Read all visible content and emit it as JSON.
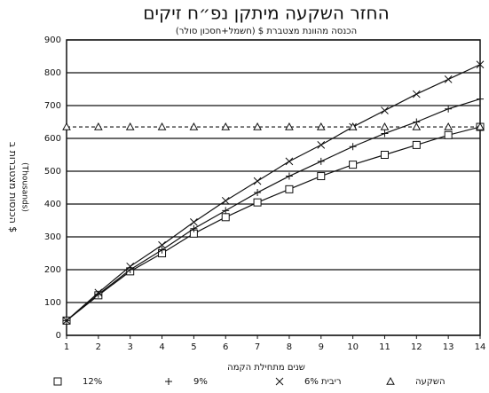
{
  "chart_data": {
    "type": "line",
    "title": "החזר השקעה מיתקן נפ״ח זיקים",
    "subtitle": "הכנסה מהוונת מצטברת $ (חשמל+חסכון סולר)",
    "ylabel": "הכנסות מצטברות ב $",
    "ylabel_unit": "(Thousands)",
    "xlabel": "שנים מתחילת הקמה",
    "x": [
      1,
      2,
      3,
      4,
      5,
      6,
      7,
      8,
      9,
      10,
      11,
      12,
      13,
      14
    ],
    "xlim": [
      1,
      14
    ],
    "xticks": [
      1,
      2,
      3,
      4,
      5,
      6,
      7,
      8,
      9,
      10,
      11,
      12,
      13,
      14
    ],
    "ylim": [
      0,
      900
    ],
    "yticks": [
      0,
      100,
      200,
      300,
      400,
      500,
      600,
      700,
      800,
      900
    ],
    "grid": true,
    "legend": "bottom",
    "series": [
      {
        "name": "12%",
        "color": "#111111",
        "marker": "square",
        "values": [
          45,
          122,
          195,
          250,
          310,
          360,
          405,
          445,
          485,
          520,
          550,
          580,
          610,
          635
        ]
      },
      {
        "name": "9%",
        "color": "#111111",
        "marker": "plus",
        "values": [
          45,
          125,
          200,
          260,
          325,
          380,
          435,
          485,
          530,
          575,
          615,
          650,
          690,
          720
        ]
      },
      {
        "name": "ריבית 6%",
        "color": "#111111",
        "marker": "diamond",
        "values": [
          45,
          130,
          210,
          275,
          345,
          410,
          470,
          530,
          580,
          635,
          685,
          735,
          780,
          825
        ]
      },
      {
        "name": "השקעה",
        "color": "#111111",
        "marker": "triangle",
        "dashed": true,
        "values": [
          635,
          635,
          635,
          635,
          635,
          635,
          635,
          635,
          635,
          635,
          635,
          635,
          635,
          635
        ]
      }
    ]
  }
}
